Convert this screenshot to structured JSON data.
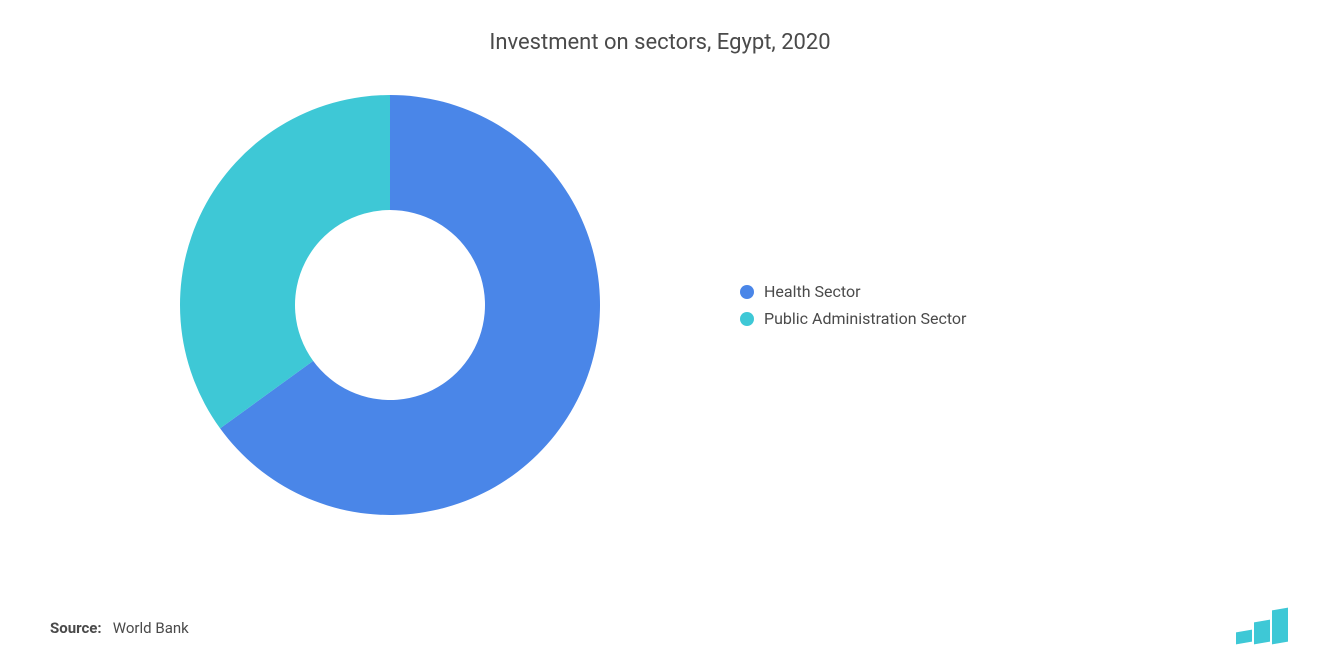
{
  "chart": {
    "type": "donut",
    "title": "Investment on sectors, Egypt, 2020",
    "title_fontsize": 22,
    "title_color": "#4a4a4a",
    "background_color": "#ffffff",
    "series": [
      {
        "label": "Health Sector",
        "value": 65,
        "color": "#4a86e8"
      },
      {
        "label": "Public Administration Sector",
        "value": 35,
        "color": "#3ec8d6"
      }
    ],
    "donut_outer_radius": 210,
    "donut_inner_radius": 95,
    "start_angle_deg": -90,
    "legend_fontsize": 16,
    "legend_color": "#4a4a4a",
    "legend_swatch_size": 14
  },
  "source": {
    "label": "Source:",
    "value": "World Bank",
    "fontsize": 15,
    "color": "#4a4a4a"
  },
  "logo": {
    "name": "mi-logo",
    "bar_color": "#3ec8d6"
  }
}
